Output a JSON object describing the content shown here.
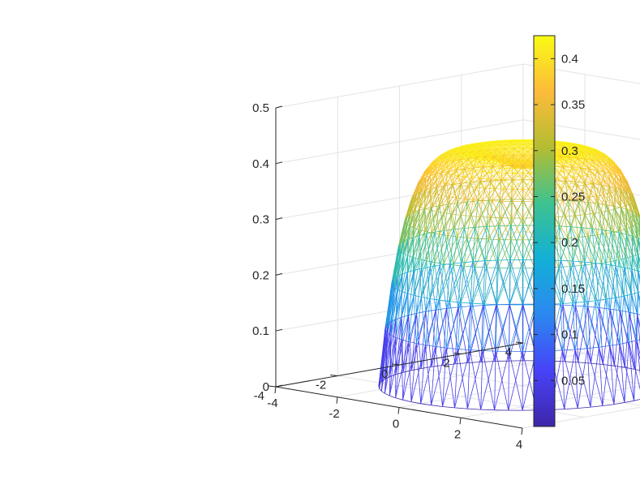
{
  "chart_data": {
    "type": "surface",
    "title": "",
    "xlabel": "",
    "ylabel": "",
    "zlabel": "",
    "xlim": [
      -4,
      4
    ],
    "ylim": [
      -4,
      4
    ],
    "zlim": [
      0,
      0.5
    ],
    "x_ticks": [
      "-4",
      "-2",
      "0",
      "2",
      "4"
    ],
    "y_ticks": [
      "-4",
      "-2",
      "0",
      "2",
      "4"
    ],
    "z_ticks": [
      "0",
      "0.1",
      "0.2",
      "0.3",
      "0.4",
      "0.5"
    ],
    "grid": true,
    "box": "open",
    "surface": {
      "style": "mesh",
      "shape": "radial bump with central dip",
      "domain": "disc",
      "domain_radius": 3.3,
      "peak_value": 0.425,
      "peak_radius": 1.0,
      "center_value": 0.39,
      "edge_value": 0.0
    },
    "colorbar": {
      "colormap": "parula",
      "location": "right",
      "limits": [
        0.0,
        0.425
      ],
      "ticks": [
        "0.05",
        "0.1",
        "0.15",
        "0.2",
        "0.25",
        "0.3",
        "0.35",
        "0.4"
      ],
      "colors": [
        "#3e26a8",
        "#4743f8",
        "#2c88f0",
        "#12b0d7",
        "#3ec28f",
        "#b4bd32",
        "#fdbb3a",
        "#f9fb15"
      ]
    }
  }
}
